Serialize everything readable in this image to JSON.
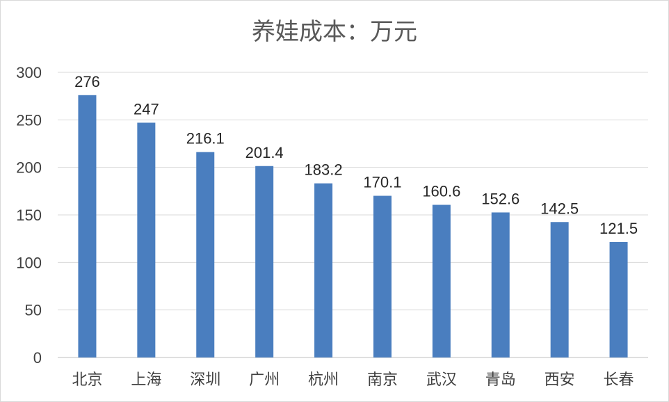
{
  "chart_data": {
    "type": "bar",
    "title": "养娃成本：万元",
    "categories": [
      "北京",
      "上海",
      "深圳",
      "广州",
      "杭州",
      "南京",
      "武汉",
      "青岛",
      "西安",
      "长春"
    ],
    "values": [
      276,
      247,
      216.1,
      201.4,
      183.2,
      170.1,
      160.6,
      152.6,
      142.5,
      121.5
    ],
    "value_labels": [
      "276",
      "247",
      "216.1",
      "201.4",
      "183.2",
      "170.1",
      "160.6",
      "152.6",
      "142.5",
      "121.5"
    ],
    "ylim": [
      0,
      300
    ],
    "yticks": [
      0,
      50,
      100,
      150,
      200,
      250,
      300
    ],
    "ytick_labels": [
      "0",
      "50",
      "100",
      "150",
      "200",
      "250",
      "300"
    ],
    "grid": true,
    "bar_color": "#4a7ebf"
  }
}
